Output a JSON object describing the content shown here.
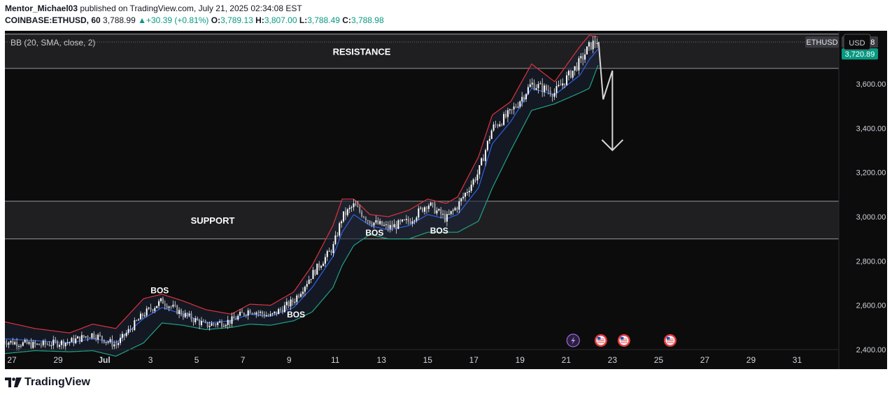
{
  "header": {
    "author": "Mentor_Michael03",
    "published": " published on TradingView.com, July 21, 2025 02:34:08 EST",
    "symbol": "COINBASE:ETHUSD, 60",
    "last": "3,788.99",
    "change_arrow": "▲",
    "change": "+30.39 (+0.81%)",
    "o_label": "O:",
    "o_value": "3,789.13",
    "h_label": "H:",
    "h_value": "3,807.00",
    "l_label": "L:",
    "l_value": "3,788.49",
    "c_label": "C:",
    "c_value": "3,788.98"
  },
  "indicator_label": "BB (20, SMA, close, 2)",
  "currency": "USD",
  "symbol_tag": "ETHUSD",
  "price_tag": "3,788.98",
  "bb_tag": "3,720.89",
  "footer_brand": "TradingView",
  "colors": {
    "background": "#0c0c0d",
    "candle": "#e8e8e8",
    "bb_upper": "#e0323a",
    "bb_lower": "#22a383",
    "bb_basis": "#2f62e8",
    "zone_fill": "#1f1f22",
    "zone_line": "#8a8a8e",
    "positive": "#089981",
    "price_tag": "#3a3b40",
    "bb_tag": "#089981"
  },
  "chart_data": {
    "type": "candlestick",
    "title": "",
    "xlabel": "",
    "ylabel": "",
    "ylim": [
      2400,
      3840
    ],
    "y_ticks": [
      2400,
      2600,
      2800,
      3000,
      3200,
      3400,
      3600
    ],
    "y_tick_labels": [
      "2,400.00",
      "2,600.00",
      "2,800.00",
      "3,000.00",
      "3,200.00",
      "3,400.00",
      "3,600.00"
    ],
    "x_day_range": [
      -4,
      31.5
    ],
    "x_ticks": [
      {
        "day": -4,
        "label": "27"
      },
      {
        "day": -2,
        "label": "29"
      },
      {
        "day": 0,
        "label": "Jul"
      },
      {
        "day": 2,
        "label": "3"
      },
      {
        "day": 4,
        "label": "5"
      },
      {
        "day": 6,
        "label": "7"
      },
      {
        "day": 8,
        "label": "9"
      },
      {
        "day": 10,
        "label": "11"
      },
      {
        "day": 12,
        "label": "13"
      },
      {
        "day": 14,
        "label": "15"
      },
      {
        "day": 16,
        "label": "17"
      },
      {
        "day": 18,
        "label": "19"
      },
      {
        "day": 20,
        "label": "21"
      },
      {
        "day": 22,
        "label": "23"
      },
      {
        "day": 24,
        "label": "25"
      },
      {
        "day": 26,
        "label": "27"
      },
      {
        "day": 28,
        "label": "29"
      },
      {
        "day": 30,
        "label": "31"
      }
    ],
    "price_path": [
      [
        -4.5,
        2440
      ],
      [
        -3,
        2420
      ],
      [
        -1.5,
        2435
      ],
      [
        -0.5,
        2470
      ],
      [
        0.5,
        2420
      ],
      [
        1.7,
        2560
      ],
      [
        2.5,
        2620
      ],
      [
        3.4,
        2560
      ],
      [
        4.4,
        2510
      ],
      [
        5.5,
        2530
      ],
      [
        6.3,
        2580
      ],
      [
        7.2,
        2550
      ],
      [
        8.2,
        2620
      ],
      [
        9.0,
        2740
      ],
      [
        9.9,
        2860
      ],
      [
        10.3,
        3000
      ],
      [
        10.8,
        3050
      ],
      [
        11.5,
        2980
      ],
      [
        12.3,
        2950
      ],
      [
        13.2,
        2980
      ],
      [
        14.0,
        3060
      ],
      [
        14.8,
        2990
      ],
      [
        15.3,
        3050
      ],
      [
        16.2,
        3200
      ],
      [
        16.8,
        3400
      ],
      [
        17.6,
        3470
      ],
      [
        18.5,
        3600
      ],
      [
        19.5,
        3560
      ],
      [
        20.6,
        3700
      ],
      [
        21.0,
        3770
      ],
      [
        21.4,
        3800
      ]
    ],
    "bb_upper_path": [
      [
        -4.5,
        2530
      ],
      [
        -3,
        2495
      ],
      [
        -1.5,
        2475
      ],
      [
        -0.5,
        2515
      ],
      [
        0.5,
        2495
      ],
      [
        1.7,
        2630
      ],
      [
        2.5,
        2650
      ],
      [
        3.4,
        2620
      ],
      [
        4.4,
        2580
      ],
      [
        5.5,
        2560
      ],
      [
        6.3,
        2605
      ],
      [
        7.2,
        2600
      ],
      [
        8.2,
        2660
      ],
      [
        9.0,
        2780
      ],
      [
        9.9,
        2960
      ],
      [
        10.3,
        3080
      ],
      [
        10.8,
        3080
      ],
      [
        11.5,
        3010
      ],
      [
        12.3,
        3000
      ],
      [
        13.2,
        3030
      ],
      [
        14.0,
        3080
      ],
      [
        14.8,
        3060
      ],
      [
        15.3,
        3090
      ],
      [
        16.2,
        3270
      ],
      [
        16.8,
        3460
      ],
      [
        17.6,
        3520
      ],
      [
        18.5,
        3690
      ],
      [
        19.5,
        3610
      ],
      [
        20.6,
        3770
      ],
      [
        21.0,
        3820
      ],
      [
        21.4,
        3810
      ]
    ],
    "bb_basis_path": [
      [
        -4.5,
        2450
      ],
      [
        -3,
        2440
      ],
      [
        -1.5,
        2430
      ],
      [
        -0.5,
        2450
      ],
      [
        0.5,
        2430
      ],
      [
        1.7,
        2540
      ],
      [
        2.5,
        2590
      ],
      [
        3.4,
        2560
      ],
      [
        4.4,
        2520
      ],
      [
        5.5,
        2530
      ],
      [
        6.3,
        2560
      ],
      [
        7.2,
        2550
      ],
      [
        8.2,
        2590
      ],
      [
        9.0,
        2680
      ],
      [
        9.9,
        2820
      ],
      [
        10.3,
        2930
      ],
      [
        10.8,
        3010
      ],
      [
        11.5,
        2960
      ],
      [
        12.3,
        2940
      ],
      [
        13.2,
        2960
      ],
      [
        14.0,
        3010
      ],
      [
        14.8,
        2990
      ],
      [
        15.3,
        3010
      ],
      [
        16.2,
        3130
      ],
      [
        16.8,
        3330
      ],
      [
        17.6,
        3430
      ],
      [
        18.5,
        3580
      ],
      [
        19.5,
        3550
      ],
      [
        20.6,
        3640
      ],
      [
        21.0,
        3710
      ],
      [
        21.4,
        3760
      ]
    ],
    "bb_lower_path": [
      [
        -4.5,
        2380
      ],
      [
        -3,
        2395
      ],
      [
        -1.5,
        2390
      ],
      [
        -0.5,
        2395
      ],
      [
        0.5,
        2370
      ],
      [
        1.7,
        2430
      ],
      [
        2.5,
        2520
      ],
      [
        3.4,
        2510
      ],
      [
        4.4,
        2490
      ],
      [
        5.5,
        2500
      ],
      [
        6.3,
        2515
      ],
      [
        7.2,
        2510
      ],
      [
        8.2,
        2530
      ],
      [
        9.0,
        2570
      ],
      [
        9.9,
        2680
      ],
      [
        10.3,
        2780
      ],
      [
        10.8,
        2870
      ],
      [
        11.5,
        2920
      ],
      [
        12.3,
        2900
      ],
      [
        13.2,
        2900
      ],
      [
        14.0,
        2930
      ],
      [
        14.8,
        2930
      ],
      [
        15.3,
        2930
      ],
      [
        16.2,
        2980
      ],
      [
        16.8,
        3130
      ],
      [
        17.6,
        3300
      ],
      [
        18.5,
        3480
      ],
      [
        19.5,
        3510
      ],
      [
        20.6,
        3560
      ],
      [
        21.0,
        3580
      ],
      [
        21.4,
        3690
      ]
    ],
    "zones": [
      {
        "label": "RESISTANCE",
        "top": 3825,
        "bottom": 3670
      },
      {
        "label": "SUPPORT",
        "top": 3070,
        "bottom": 2900
      }
    ],
    "annotations": [
      {
        "label": "BOS",
        "day": 2.4,
        "price": 2655
      },
      {
        "label": "BOS",
        "day": 8.3,
        "price": 2545
      },
      {
        "label": "BOS",
        "day": 11.7,
        "price": 2915
      },
      {
        "label": "BOS",
        "day": 14.5,
        "price": 2925
      }
    ],
    "forecast_arrow": {
      "start_day": 21.4,
      "start_price": 3790,
      "points": [
        [
          21.6,
          3530
        ],
        [
          22.0,
          3660
        ],
        [
          22.0,
          3300
        ]
      ]
    },
    "last_price": 3788.98,
    "bb_last": 3720.89,
    "events": [
      {
        "day": 20.3,
        "icon": "lightning-icon"
      },
      {
        "day": 21.5,
        "icon": "us-flag-icon"
      },
      {
        "day": 22.5,
        "icon": "us-flag-icon"
      },
      {
        "day": 24.5,
        "icon": "us-flag-icon"
      }
    ]
  }
}
